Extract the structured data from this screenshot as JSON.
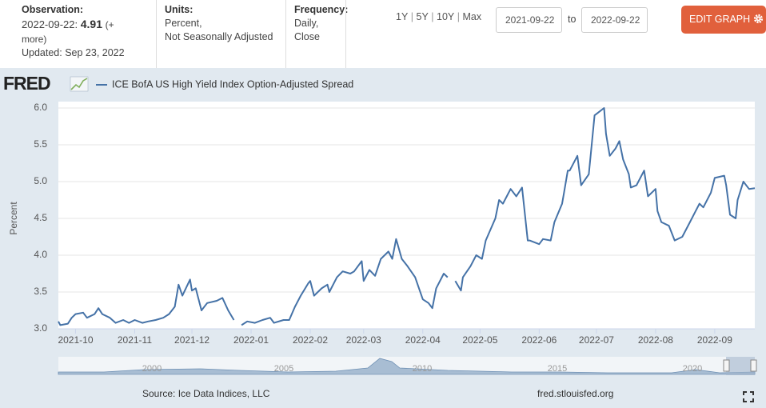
{
  "header": {
    "observation_label": "Observation:",
    "observation_date": "2022-09-22:",
    "observation_value": "4.91",
    "observation_more": "(+ more)",
    "updated": "Updated: Sep 23, 2022",
    "units_label": "Units:",
    "units": [
      "Percent,",
      "Not Seasonally Adjusted"
    ],
    "frequency_label": "Frequency:",
    "frequency": [
      "Daily,",
      "Close"
    ],
    "ranges": [
      "1Y",
      "5Y",
      "10Y",
      "Max"
    ],
    "start_date": "2021-09-22",
    "to": "to",
    "end_date": "2022-09-22",
    "edit_button": "EDIT GRAPH"
  },
  "logo": "FRED",
  "chart_data": {
    "type": "line",
    "ylabel": "Percent",
    "x": [
      "2021-09-22",
      "2021-09-23",
      "2021-09-27",
      "2021-09-29",
      "2021-10-01",
      "2021-10-05",
      "2021-10-07",
      "2021-10-11",
      "2021-10-13",
      "2021-10-15",
      "2021-10-19",
      "2021-10-22",
      "2021-10-26",
      "2021-10-29",
      "2021-11-01",
      "2021-11-05",
      "2021-11-08",
      "2021-11-12",
      "2021-11-16",
      "2021-11-19",
      "2021-11-22",
      "2021-11-24",
      "2021-11-26",
      "2021-11-30",
      "2021-12-01",
      "2021-12-03",
      "2021-12-06",
      "2021-12-09",
      "2021-12-14",
      "2021-12-17",
      "2021-12-20",
      "2021-12-23",
      "2021-12-24",
      "2021-12-27",
      "2021-12-30",
      "2022-01-03",
      "2022-01-07",
      "2022-01-11",
      "2022-01-13",
      "2022-01-18",
      "2022-01-21",
      "2022-01-24",
      "2022-01-27",
      "2022-01-31",
      "2022-02-01",
      "2022-02-03",
      "2022-02-07",
      "2022-02-10",
      "2022-02-11",
      "2022-02-15",
      "2022-02-18",
      "2022-02-22",
      "2022-02-24",
      "2022-02-28",
      "2022-03-01",
      "2022-03-04",
      "2022-03-07",
      "2022-03-10",
      "2022-03-14",
      "2022-03-16",
      "2022-03-18",
      "2022-03-21",
      "2022-03-24",
      "2022-03-28",
      "2022-03-30",
      "2022-04-01",
      "2022-04-04",
      "2022-04-06",
      "2022-04-08",
      "2022-04-12",
      "2022-04-14",
      "2022-04-15",
      "2022-04-18",
      "2022-04-21",
      "2022-04-22",
      "2022-04-26",
      "2022-04-29",
      "2022-05-02",
      "2022-05-04",
      "2022-05-09",
      "2022-05-11",
      "2022-05-13",
      "2022-05-17",
      "2022-05-20",
      "2022-05-23",
      "2022-05-26",
      "2022-05-27",
      "2022-06-01",
      "2022-06-03",
      "2022-06-07",
      "2022-06-09",
      "2022-06-13",
      "2022-06-14",
      "2022-06-16",
      "2022-06-17",
      "2022-06-21",
      "2022-06-23",
      "2022-06-27",
      "2022-06-30",
      "2022-07-01",
      "2022-07-05",
      "2022-07-06",
      "2022-07-08",
      "2022-07-11",
      "2022-07-13",
      "2022-07-15",
      "2022-07-18",
      "2022-07-19",
      "2022-07-22",
      "2022-07-26",
      "2022-07-28",
      "2022-08-01",
      "2022-08-02",
      "2022-08-04",
      "2022-08-08",
      "2022-08-11",
      "2022-08-15",
      "2022-08-19",
      "2022-08-22",
      "2022-08-24",
      "2022-08-26",
      "2022-08-30",
      "2022-09-01",
      "2022-09-06",
      "2022-09-07",
      "2022-09-09",
      "2022-09-12",
      "2022-09-13",
      "2022-09-16",
      "2022-09-19",
      "2022-09-22"
    ],
    "series": [
      {
        "name": "ICE BofA US High Yield Index Option-Adjusted Spread",
        "color": "#4572a7",
        "values": [
          3.1,
          3.05,
          3.07,
          3.15,
          3.2,
          3.22,
          3.15,
          3.2,
          3.28,
          3.2,
          3.15,
          3.08,
          3.12,
          3.08,
          3.12,
          3.08,
          3.1,
          3.12,
          3.15,
          3.2,
          3.3,
          3.6,
          3.45,
          3.67,
          3.52,
          3.55,
          3.25,
          3.35,
          3.38,
          3.42,
          3.25,
          3.12,
          null,
          3.05,
          3.1,
          3.08,
          3.12,
          3.15,
          3.08,
          3.12,
          3.12,
          3.3,
          3.45,
          3.62,
          3.65,
          3.45,
          3.55,
          3.6,
          3.5,
          3.7,
          3.78,
          3.75,
          3.78,
          3.92,
          3.65,
          3.8,
          3.72,
          3.95,
          4.05,
          3.95,
          4.22,
          3.95,
          3.85,
          3.7,
          3.55,
          3.4,
          3.35,
          3.28,
          3.55,
          3.75,
          3.7,
          null,
          3.65,
          3.52,
          3.7,
          3.85,
          4.0,
          3.95,
          4.2,
          4.5,
          4.75,
          4.7,
          4.9,
          4.8,
          4.92,
          4.2,
          4.2,
          4.15,
          4.22,
          4.2,
          4.45,
          4.7,
          4.85,
          5.15,
          5.15,
          5.35,
          4.95,
          5.1,
          5.9,
          5.92,
          6.0,
          5.65,
          5.35,
          5.45,
          5.55,
          5.3,
          5.1,
          4.92,
          4.95,
          5.15,
          4.8,
          4.9,
          4.6,
          4.45,
          4.4,
          4.2,
          4.25,
          4.45,
          4.6,
          4.7,
          4.65,
          4.85,
          5.05,
          5.08,
          4.95,
          4.55,
          4.5,
          4.75,
          5.0,
          4.9,
          4.91
        ]
      }
    ],
    "xlim": [
      "2021-09-22",
      "2022-09-22"
    ],
    "xticks": [
      {
        "value": "2021-10-01",
        "label": "2021-10"
      },
      {
        "value": "2021-11-01",
        "label": "2021-11"
      },
      {
        "value": "2021-12-01",
        "label": "2021-12"
      },
      {
        "value": "2022-01-01",
        "label": "2022-01"
      },
      {
        "value": "2022-02-01",
        "label": "2022-02"
      },
      {
        "value": "2022-03-01",
        "label": "2022-03"
      },
      {
        "value": "2022-04-01",
        "label": "2022-04"
      },
      {
        "value": "2022-05-01",
        "label": "2022-05"
      },
      {
        "value": "2022-06-01",
        "label": "2022-06"
      },
      {
        "value": "2022-07-01",
        "label": "2022-07"
      },
      {
        "value": "2022-08-01",
        "label": "2022-08"
      },
      {
        "value": "2022-09-01",
        "label": "2022-09"
      }
    ],
    "ylim": [
      3,
      6
    ],
    "yticks": [
      {
        "value": 3,
        "label": "3.0"
      },
      {
        "value": 3.5,
        "label": "3.5"
      },
      {
        "value": 4,
        "label": "4.0"
      },
      {
        "value": 4.5,
        "label": "4.5"
      },
      {
        "value": 5,
        "label": "5.0"
      },
      {
        "value": 5.5,
        "label": "5.5"
      },
      {
        "value": 6,
        "label": "6.0"
      }
    ],
    "grid": true
  },
  "navigator_labels": [
    "2000",
    "2005",
    "2010",
    "2015",
    "2020"
  ],
  "source": "Source: Ice Data Indices, LLC",
  "site": "fred.stlouisfed.org"
}
